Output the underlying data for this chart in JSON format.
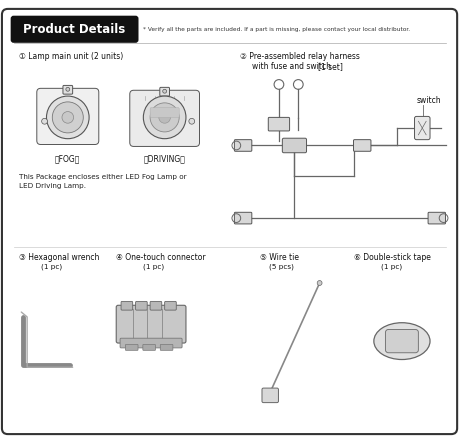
{
  "title": "Product Details",
  "title_bg": "#111111",
  "title_color": "#ffffff",
  "bg_color": "#ffffff",
  "border_color": "#333333",
  "note_text": "* Verify all the parts are included. If a part is missing, please contact your local distributor.",
  "item1_title": "① Lamp main unit (2 units)",
  "item1_label1": "［FOG］",
  "item1_label2": "［DRIVING］",
  "item1_note1": "This Package encloses either LED Fog Lamp or",
  "item1_note2": "LED Driving Lamp.",
  "item2_title": "② Pre-assembled relay harness",
  "item2_sub": "with fuse and switch",
  "item2_qty": "[1 set]",
  "item2_switch": "switch",
  "item3_title": "③ Hexagonal wrench",
  "item3_qty": "(1 pc)",
  "item4_title": "④ One-touch connector",
  "item4_qty": "(1 pc)",
  "item5_title": "⑤ Wire tie",
  "item5_qty": "(5 pcs)",
  "item6_title": "⑥ Double-stick tape",
  "item6_qty": "(1 pc)",
  "line_color": "#666666",
  "shape_edge": "#555555",
  "shape_face": "#e8e8e8"
}
